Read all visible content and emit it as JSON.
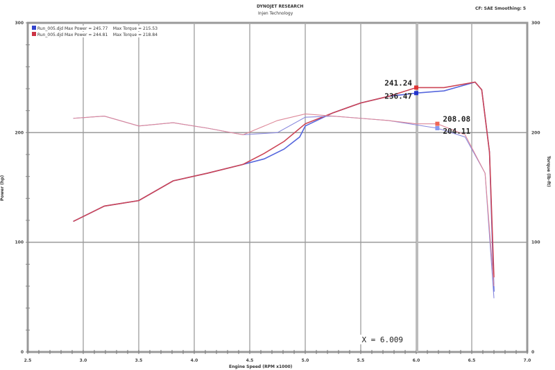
{
  "header": {
    "title": "DYNOJET RESEARCH",
    "subtitle": "Injen Technology",
    "settings": "CF: SAE  Smoothing: 5"
  },
  "legend": [
    {
      "text": "Run_005.djd Max Power = 245.77",
      "torque": "Max Torque = 215.53",
      "color": "#3344cc"
    },
    {
      "text": "Run_005.djd Max Power = 244.81",
      "torque": "Max Torque = 218.84",
      "color": "#cc3344"
    }
  ],
  "cursor": {
    "label": "X = 6.009",
    "x": 6.009
  },
  "chart_data": {
    "type": "line",
    "xlabel": "Engine Speed (RPM x1000)",
    "ylabel_left": "Power (hp)",
    "ylabel_right": "Torque (lb-ft)",
    "xlim": [
      2.5,
      7.0
    ],
    "ylim": [
      0,
      300
    ],
    "xticks": [
      "2.5",
      "3.0",
      "3.5",
      "4.0",
      "4.5",
      "5.0",
      "5.5",
      "6.0",
      "6.5",
      "7.0"
    ],
    "yticks": [
      "0",
      "100",
      "200",
      "300"
    ],
    "grid": true,
    "series": [
      {
        "color": "#5566dd",
        "kind": "power",
        "x": [
          2.91,
          3.19,
          3.5,
          3.81,
          4.12,
          4.44,
          4.63,
          4.81,
          4.95,
          5.0,
          5.25,
          5.5,
          5.75,
          6.0,
          6.25,
          6.53,
          6.59,
          6.66,
          6.7
        ],
        "y": [
          119,
          133,
          138,
          156,
          163,
          171,
          176,
          185,
          196,
          206,
          218,
          227,
          233,
          236,
          238,
          246,
          239,
          182,
          55
        ]
      },
      {
        "color": "#cc4455",
        "kind": "power",
        "x": [
          2.91,
          3.19,
          3.5,
          3.81,
          4.12,
          4.44,
          4.63,
          4.81,
          5.0,
          5.25,
          5.5,
          5.75,
          6.0,
          6.25,
          6.53,
          6.59,
          6.66,
          6.7
        ],
        "y": [
          119,
          133,
          138,
          156,
          163,
          171,
          181,
          192,
          208,
          218,
          227,
          233,
          241,
          241,
          246,
          239,
          182,
          68
        ]
      },
      {
        "color": "#8888dd",
        "kind": "torque",
        "x": [
          2.91,
          3.19,
          3.5,
          3.81,
          4.12,
          4.44,
          4.75,
          5.0,
          5.25,
          5.5,
          5.75,
          6.0,
          6.19,
          6.44,
          6.62,
          6.7
        ],
        "y": [
          213,
          215,
          206,
          209,
          204,
          198,
          200,
          214,
          215,
          213,
          211,
          207,
          204,
          196,
          163,
          49
        ]
      },
      {
        "color": "#dd8899",
        "kind": "torque",
        "x": [
          2.91,
          3.19,
          3.5,
          3.81,
          4.12,
          4.44,
          4.75,
          5.0,
          5.25,
          5.5,
          5.75,
          6.0,
          6.19,
          6.44,
          6.62,
          6.7
        ],
        "y": [
          213,
          215,
          206,
          209,
          204,
          198,
          211,
          217,
          215,
          213,
          211,
          208,
          208,
          198,
          163,
          60
        ]
      }
    ],
    "annotations": [
      {
        "text": "241.24",
        "x": 6.0,
        "y": 241,
        "color": "#dd3333"
      },
      {
        "text": "236.47",
        "x": 6.0,
        "y": 236,
        "color": "#2233cc"
      },
      {
        "text": "208.08",
        "x": 6.19,
        "y": 208,
        "color": "#ee6655"
      },
      {
        "text": "204.11",
        "x": 6.19,
        "y": 204,
        "color": "#8899ee"
      }
    ]
  }
}
